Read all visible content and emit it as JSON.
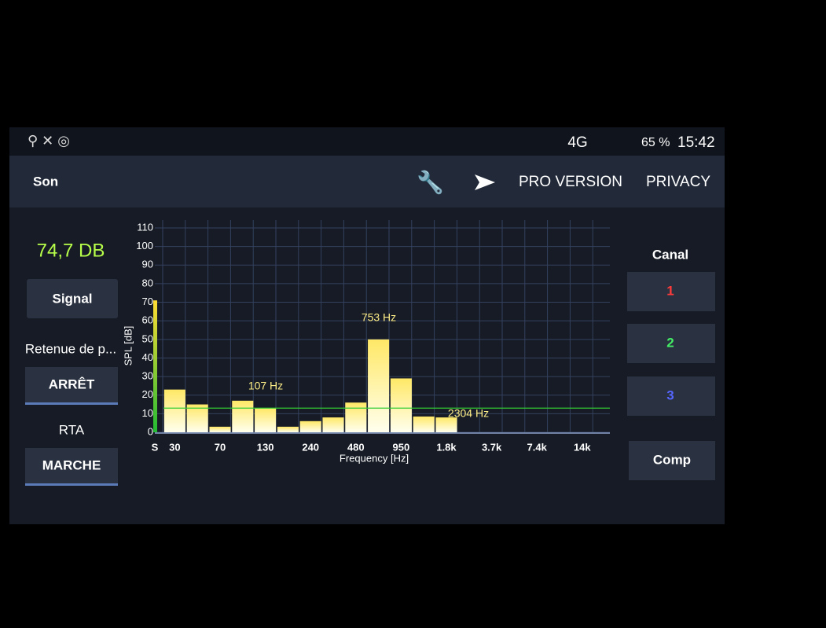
{
  "status_bar": {
    "network": "4G",
    "battery": "65 %",
    "time": "15:42"
  },
  "app_bar": {
    "title": "Son",
    "actions": [
      "PRO VERSION",
      "PRIVACY"
    ]
  },
  "left_panel": {
    "level": "74,7 DB",
    "signal_button": "Signal",
    "hold_label": "Retenue de p...",
    "hold_button": "ARRÊT",
    "rta_label": "RTA",
    "rta_button": "MARCHE"
  },
  "right_panel": {
    "channel_label": "Canal",
    "channels": [
      "1",
      "2",
      "3"
    ],
    "compare_button": "Comp"
  },
  "chart_data": {
    "type": "bar",
    "y_label": "SPL [dB]",
    "x_label": "Frequency [Hz]",
    "categories": [
      "30",
      null,
      "70",
      null,
      "130",
      null,
      "240",
      null,
      "480",
      null,
      "950",
      null,
      "1.8k",
      null,
      "3.7k",
      null,
      "7.4k",
      null,
      "14k",
      null
    ],
    "values": [
      23,
      15,
      3,
      17,
      13,
      3,
      6,
      8,
      16,
      50,
      29,
      8.5,
      8,
      null,
      null,
      null,
      null,
      null,
      null,
      null
    ],
    "color": "#ffe866",
    "ylim": [
      0,
      110
    ],
    "yticks": [
      0,
      10,
      20,
      30,
      40,
      50,
      60,
      70,
      80,
      90,
      100,
      110
    ],
    "grid": true,
    "signal": {
      "label": "S",
      "value": 71
    },
    "threshold": 13,
    "annotations": [
      "107 Hz",
      "753 Hz",
      "2304 Hz"
    ]
  }
}
